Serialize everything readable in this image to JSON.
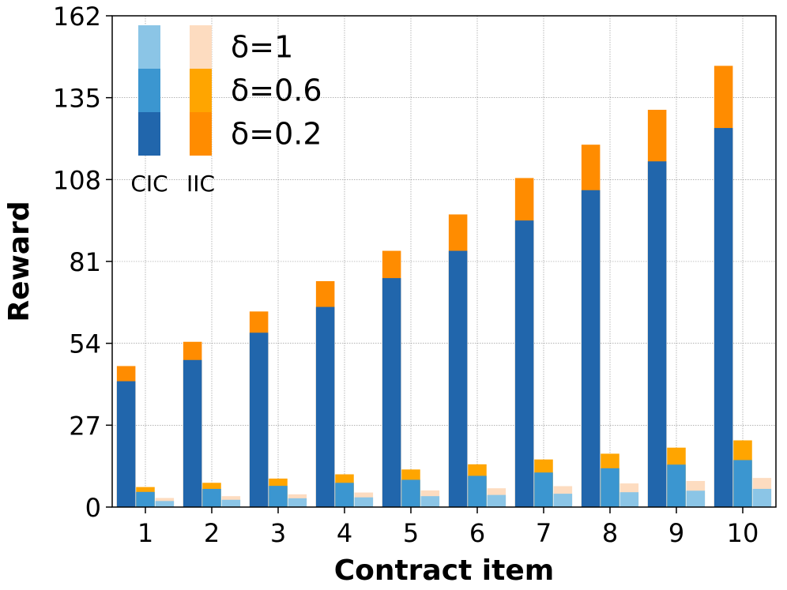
{
  "chart_data": {
    "type": "bar",
    "xlabel": "Contract item",
    "ylabel": "Reward",
    "ylim": [
      0,
      162
    ],
    "yticks": [
      "0",
      "27",
      "54",
      "81",
      "108",
      "135",
      "162"
    ],
    "categories": [
      "1",
      "2",
      "3",
      "4",
      "5",
      "6",
      "7",
      "8",
      "9",
      "10"
    ],
    "grid": true,
    "legend": {
      "placement": "top-left",
      "column_labels": [
        "CIC",
        "IIC"
      ],
      "row_labels": [
        "δ=1",
        "δ=0.6",
        "δ=0.2"
      ]
    },
    "groups": [
      {
        "name": "CIC",
        "series": [
          {
            "name": "δ=0.2",
            "color": "#2166ac",
            "values": [
              41.5,
              48.5,
              57.5,
              66,
              75.5,
              84.5,
              94.5,
              104.5,
              114,
              125
            ]
          },
          {
            "name": "δ=0.6",
            "color": "#3b96d0",
            "values": [
              5.0,
              6.0,
              7.0,
              8.0,
              9.0,
              10.3,
              11.4,
              12.8,
              14.0,
              15.5
            ]
          },
          {
            "name": "δ=1",
            "color": "#8bc5e6",
            "values": [
              2.0,
              2.4,
              2.9,
              3.2,
              3.6,
              4.0,
              4.4,
              4.9,
              5.4,
              6.0
            ]
          }
        ]
      },
      {
        "name": "IIC",
        "series": [
          {
            "name": "δ=0.2",
            "color": "#ff8c00",
            "values": [
              46.5,
              54.5,
              64.5,
              74.5,
              84.5,
              96.5,
              108.5,
              119.5,
              131,
              145.5
            ]
          },
          {
            "name": "δ=0.6",
            "color": "#ffa500",
            "values": [
              6.6,
              8.0,
              9.4,
              10.8,
              12.4,
              14.1,
              15.7,
              17.6,
              19.6,
              22.0
            ]
          },
          {
            "name": "δ=1",
            "color": "#fddcc0",
            "values": [
              3.0,
              3.6,
              4.2,
              4.8,
              5.5,
              6.2,
              6.9,
              7.8,
              8.6,
              9.6
            ]
          }
        ]
      }
    ]
  }
}
